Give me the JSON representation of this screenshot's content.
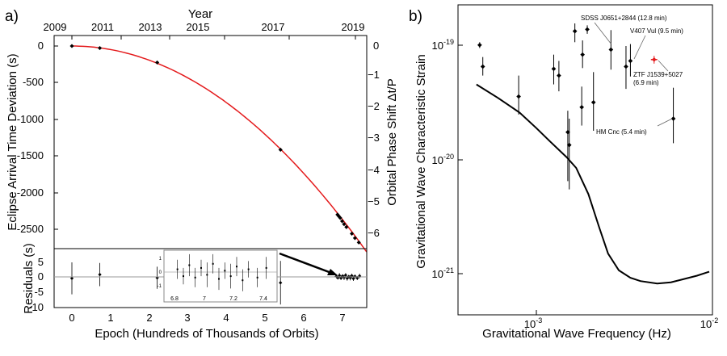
{
  "panel_a": {
    "label": "a)",
    "top_axis_title": "Year",
    "top_ticks": [
      "2009",
      "2011",
      "2013",
      "2015",
      "2017",
      "2019"
    ],
    "y_left_label": "Eclipse Arrival Time Deviation (s)",
    "y_left_ticks": [
      "0",
      "-500",
      "-1000",
      "-1500",
      "-2000",
      "-2500"
    ],
    "y_right_label": "Orbital Phase Shift Δt/P",
    "y_right_ticks": [
      "0",
      "−1",
      "−2",
      "−3",
      "−4",
      "−5",
      "−6"
    ],
    "res_ylabel": "Residuals (s)",
    "res_ticks": [
      "5",
      "0",
      "-5",
      "-10"
    ],
    "xlabel": "Epoch (Hundreds of Thousands of Orbits)",
    "x_ticks": [
      "0",
      "1",
      "2",
      "3",
      "4",
      "5",
      "6",
      "7"
    ],
    "inset_x_ticks": [
      "6.8",
      "7",
      "7.2",
      "7.4"
    ],
    "inset_y_ticks": [
      "1",
      "0",
      "-1"
    ]
  },
  "panel_b": {
    "label": "b)",
    "xlabel": "Gravitational Wave Frequency (Hz)",
    "ylabel": "Gravitational Wave Characteristic Strain",
    "x_tick_base": "10",
    "x_tick_exps": [
      "-3",
      "-2"
    ],
    "y_tick_base": "10",
    "y_tick_exps": [
      "-19",
      "-20",
      "-21"
    ],
    "annotations": [
      {
        "id": "sdss",
        "text": "SDSS J0651+2844 (12.8 min)"
      },
      {
        "id": "v407",
        "text": "V407 Vul (9.5 min)"
      },
      {
        "id": "ztf1",
        "text": "ZTF J1539+5027"
      },
      {
        "id": "ztf2",
        "text": "(6.9 min)"
      },
      {
        "id": "hm",
        "text": "HM Cnc (5.4 min)"
      }
    ]
  },
  "colors": {
    "model_curve": "#e41a1c",
    "highlight": "#e41a1c",
    "points": "#000000"
  },
  "chart_data": [
    {
      "type": "scatter",
      "title": "",
      "xlabel": "Epoch (Hundreds of Thousands of Orbits)",
      "ylabel": "Eclipse Arrival Time Deviation (s)",
      "xlim": [
        -0.5,
        7.6
      ],
      "ylim": [
        -2820,
        130
      ],
      "series": [
        {
          "values_xy": [
            [
              0,
              0
            ],
            [
              0.72,
              -28
            ],
            [
              2.2,
              -225
            ],
            [
              5.38,
              -1415
            ],
            [
              6.85,
              -2300
            ],
            [
              6.88,
              -2320
            ],
            [
              6.92,
              -2345
            ],
            [
              6.97,
              -2390
            ],
            [
              7.02,
              -2430
            ],
            [
              7.08,
              -2470
            ],
            [
              7.22,
              -2560
            ],
            [
              7.3,
              -2620
            ],
            [
              7.4,
              -2680
            ]
          ]
        }
      ],
      "model_curve": {
        "form": "quadratic",
        "coefficients": {
          "a2": -48.6
        }
      }
    },
    {
      "type": "scatter",
      "title": "",
      "xlabel": "Epoch (Hundreds of Thousands of Orbits)",
      "ylabel": "Residuals (s)",
      "xlim": [
        -0.5,
        7.6
      ],
      "ylim": [
        -10,
        7.5
      ],
      "series": [
        {
          "values": [
            [
              0,
              -0.5,
              5.5
            ],
            [
              0.72,
              0.8,
              4.0
            ],
            [
              2.2,
              -0.3,
              3.8
            ],
            [
              5.38,
              -2.0,
              7.5
            ],
            [
              6.82,
              0.2,
              0.7
            ],
            [
              6.86,
              -0.3,
              0.6
            ],
            [
              6.9,
              0.5,
              0.8
            ],
            [
              6.94,
              -0.4,
              0.7
            ],
            [
              6.98,
              0.3,
              0.6
            ],
            [
              7.02,
              -0.2,
              0.9
            ],
            [
              7.06,
              0.6,
              0.7
            ],
            [
              7.1,
              -0.5,
              0.8
            ],
            [
              7.14,
              0.1,
              0.6
            ],
            [
              7.18,
              -0.3,
              0.9
            ],
            [
              7.22,
              0.4,
              0.7
            ],
            [
              7.26,
              -0.6,
              0.8
            ],
            [
              7.3,
              0.2,
              0.6
            ],
            [
              7.36,
              -0.4,
              0.7
            ],
            [
              7.42,
              0.3,
              0.8
            ]
          ],
          "columns": [
            "x",
            "y",
            "err"
          ]
        }
      ]
    },
    {
      "type": "scatter",
      "title": "",
      "xlabel": "Gravitational Wave Frequency (Hz)",
      "ylabel": "Gravitational Wave Characteristic Strain",
      "x_scale": "log",
      "y_scale": "log",
      "xlim": [
        0.00042,
        0.01
      ],
      "ylim": [
        4.2e-22,
        1.6e-19
      ],
      "sensitivity_curve": [
        [
          0.00045,
          4.6e-20
        ],
        [
          0.0006,
          3.5e-20
        ],
        [
          0.0008,
          2.6e-20
        ],
        [
          0.001,
          1.9e-20
        ],
        [
          0.0012,
          1.45e-20
        ],
        [
          0.0015,
          1.05e-20
        ],
        [
          0.0017,
          8.5e-21
        ],
        [
          0.002,
          5e-21
        ],
        [
          0.0023,
          2.6e-21
        ],
        [
          0.0026,
          1.5e-21
        ],
        [
          0.003,
          1.07e-21
        ],
        [
          0.0035,
          9.2e-22
        ],
        [
          0.004,
          8.6e-22
        ],
        [
          0.005,
          8.2e-22
        ],
        [
          0.006,
          8.4e-22
        ],
        [
          0.007,
          8.9e-22
        ],
        [
          0.0085,
          9.6e-22
        ],
        [
          0.01,
          1.04e-21
        ]
      ],
      "sources": [
        {
          "f": 0.00047,
          "h": 1.02e-19,
          "lo": 9.6e-20,
          "hi": 1.08e-19
        },
        {
          "f": 0.00049,
          "h": 6.6e-20,
          "lo": 5.5e-20,
          "hi": 8e-20
        },
        {
          "f": 0.00079,
          "h": 3.6e-20,
          "lo": 2.5e-20,
          "hi": 5.5e-20
        },
        {
          "f": 0.00126,
          "h": 6.3e-20,
          "lo": 4.6e-20,
          "hi": 8.4e-20
        },
        {
          "f": 0.00135,
          "h": 5.5e-20,
          "lo": 4e-20,
          "hi": 7.4e-20
        },
        {
          "f": 0.00152,
          "h": 1.75e-20,
          "lo": 6.5e-21,
          "hi": 2.7e-20
        },
        {
          "f": 0.00155,
          "h": 1.35e-20,
          "lo": 5.5e-21,
          "hi": 2.3e-20
        },
        {
          "f": 0.00167,
          "h": 1.35e-19,
          "lo": 1.08e-19,
          "hi": 1.58e-19
        },
        {
          "f": 0.00183,
          "h": 2.9e-20,
          "lo": 2e-20,
          "hi": 4.4e-20
        },
        {
          "f": 0.00185,
          "h": 8.4e-20,
          "lo": 6.4e-20,
          "hi": 1.12e-19
        },
        {
          "f": 0.00197,
          "h": 1.4e-19,
          "lo": 1.28e-19,
          "hi": 1.52e-19
        },
        {
          "f": 0.00214,
          "h": 3.2e-20,
          "lo": 1.8e-20,
          "hi": 5.9e-20
        },
        {
          "f": 0.0027,
          "h": 9.3e-20,
          "lo": 6.2e-20,
          "hi": 1.38e-19
        },
        {
          "f": 0.0033,
          "h": 6.6e-20,
          "lo": 4.2e-20,
          "hi": 1e-19
        },
        {
          "f": 0.0035,
          "h": 7.4e-20,
          "lo": 5.4e-20,
          "hi": 1.04e-19
        },
        {
          "f": 0.0048,
          "h": 7.6e-20,
          "lo": 7e-20,
          "hi": 8.2e-20,
          "highlight": true
        },
        {
          "f": 0.0062,
          "h": 2.3e-20,
          "lo": 1.4e-20,
          "hi": 4.3e-20
        }
      ]
    }
  ]
}
